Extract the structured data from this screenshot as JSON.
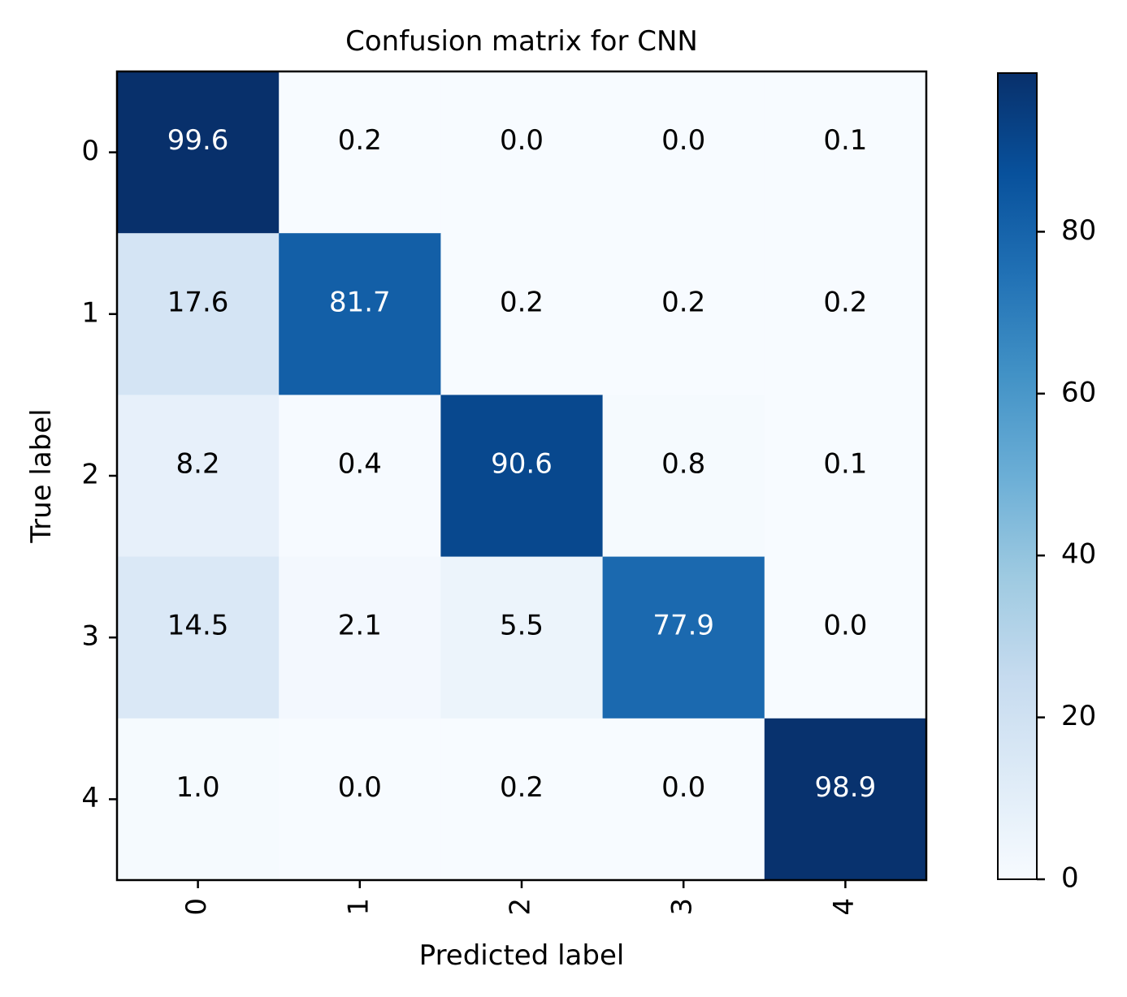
{
  "chart_data": {
    "type": "heatmap",
    "title": "Confusion matrix for CNN",
    "xlabel": "Predicted label",
    "ylabel": "True label",
    "x_categories": [
      "0",
      "1",
      "2",
      "3",
      "4"
    ],
    "y_categories": [
      "0",
      "1",
      "2",
      "3",
      "4"
    ],
    "values": [
      [
        99.6,
        0.2,
        0.0,
        0.0,
        0.1
      ],
      [
        17.6,
        81.7,
        0.2,
        0.2,
        0.2
      ],
      [
        8.2,
        0.4,
        90.6,
        0.8,
        0.1
      ],
      [
        14.5,
        2.1,
        5.5,
        77.9,
        0.0
      ],
      [
        1.0,
        0.0,
        0.2,
        0.0,
        98.9
      ]
    ],
    "value_format": "0.0",
    "colormap": "Blues",
    "vmin": 0,
    "vmax": 99.6,
    "colorbar_ticks": [
      "0",
      "20",
      "40",
      "60",
      "80"
    ],
    "text_color_light": "#ffffff",
    "text_color_dark": "#000000",
    "x_tick_rotation": "vertical"
  }
}
